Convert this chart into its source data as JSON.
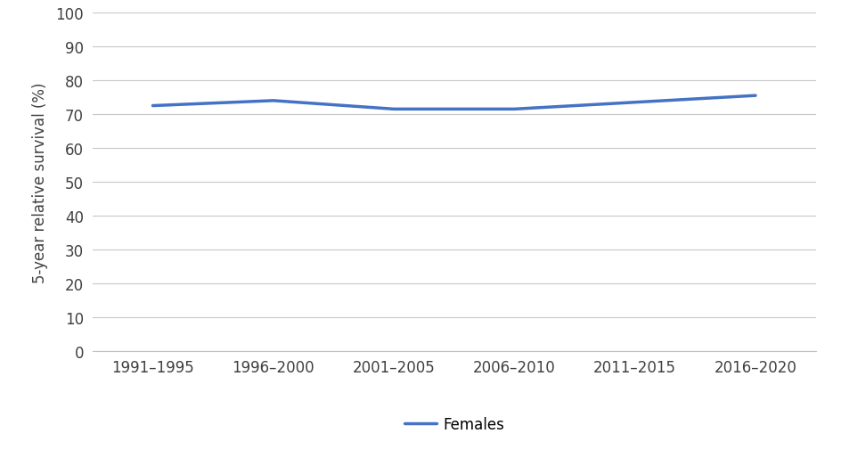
{
  "categories": [
    "1991–1995",
    "1996–2000",
    "2001–2005",
    "2006–2010",
    "2011–2015",
    "2016–2020"
  ],
  "females": [
    72.5,
    74.0,
    71.5,
    71.5,
    73.5,
    75.5
  ],
  "line_color": "#4472C4",
  "line_width": 2.5,
  "ylabel": "5-year relative survival (%)",
  "ylim": [
    0,
    100
  ],
  "yticks": [
    0,
    10,
    20,
    30,
    40,
    50,
    60,
    70,
    80,
    90,
    100
  ],
  "legend_label": "Females",
  "background_color": "#ffffff",
  "grid_color": "#c8c8c8",
  "tick_label_color": "#404040",
  "spine_color": "#c0c0c0",
  "tick_fontsize": 12,
  "ylabel_fontsize": 12,
  "legend_fontsize": 12
}
